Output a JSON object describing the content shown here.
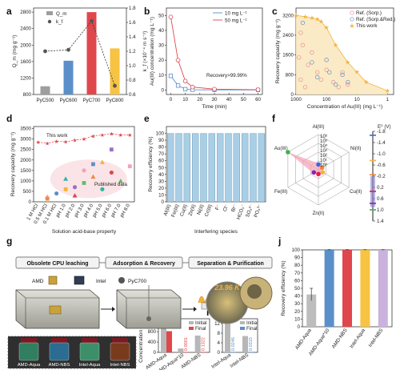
{
  "panels": {
    "a": "a",
    "b": "b",
    "c": "c",
    "d": "d",
    "e": "e",
    "f": "f",
    "g": "g",
    "h": "h",
    "i": "i",
    "j": "j"
  },
  "colors": {
    "grey": "#9e9e9e",
    "blue": "#5b8fc9",
    "red": "#e0474c",
    "yellow": "#f6c343",
    "pink": "#f3a3b4",
    "lightblue": "#a9cfe6",
    "orange": "#f08a3c",
    "gold": "#f2b33d"
  },
  "chart_data": [
    {
      "panel": "a",
      "type": "bar",
      "categories": [
        "PyC500",
        "PyC600",
        "PyC700",
        "PyC800"
      ],
      "series": [
        {
          "name": "Q_m",
          "values": [
            1000,
            1620,
            2800,
            1920
          ]
        },
        {
          "name": "k_f",
          "values": [
            1.2,
            1.22,
            1.62,
            0.72
          ]
        }
      ],
      "ylabel": "Q_m (mg g⁻¹)",
      "y2label": "k_f (×10⁻⁴ m s⁻¹)",
      "ylim": [
        800,
        2900
      ],
      "y2lim": [
        0.6,
        1.8
      ],
      "yticks": [
        "800",
        "1200",
        "1600",
        "2000",
        "2400",
        "2800"
      ],
      "y2ticks": [
        "0.6",
        "0.8",
        "1.0",
        "1.2",
        "1.4",
        "1.6",
        "1.8"
      ],
      "legend": [
        "Q_m",
        "k_f"
      ]
    },
    {
      "panel": "b",
      "type": "line",
      "x": [
        0,
        5,
        10,
        15,
        30,
        60
      ],
      "series": [
        {
          "name": "10 mg L⁻¹",
          "values": [
            9.5,
            3.0,
            0.6,
            0.2,
            0.1,
            0.05
          ]
        },
        {
          "name": "50 mg L⁻¹",
          "values": [
            49,
            20,
            6,
            2,
            0.6,
            0.2
          ]
        }
      ],
      "xlabel": "Time (min)",
      "ylabel": "Au(III) concentration (mg L⁻¹)",
      "xlim": [
        -3,
        63
      ],
      "ylim": [
        -3,
        55
      ],
      "xticks": [
        "0",
        "10",
        "20",
        "30",
        "40",
        "50",
        "60"
      ],
      "yticks": [
        "0",
        "10",
        "20",
        "30",
        "40",
        "50"
      ],
      "annotation": "Recovery>99.99%"
    },
    {
      "panel": "c",
      "type": "scatter",
      "xscale": "log-reversed",
      "xlabel": "Concentration of Au(III) (mg L⁻¹)",
      "ylabel": "Recovery capacity (mg g⁻¹)",
      "ylim": [
        0,
        3500
      ],
      "xticks": [
        "1000",
        "100",
        "10",
        "1"
      ],
      "yticks": [
        "0",
        "800",
        "1600",
        "2400",
        "3200"
      ],
      "legend": [
        "Ref. (Sorp.)",
        "Ref. (Sorp.&Red.)",
        "This work"
      ],
      "series": [
        {
          "name": "This work",
          "x": [
            1000,
            500,
            300,
            200,
            150,
            100,
            50,
            20,
            10,
            5,
            1
          ],
          "values": [
            3200,
            3150,
            3100,
            3050,
            2950,
            2700,
            2000,
            1300,
            900,
            500,
            150
          ]
        },
        {
          "name": "Ref. (Sorp.)",
          "x": [
            800,
            700,
            600,
            400,
            300,
            200,
            150,
            100,
            60,
            40,
            30,
            20,
            700,
            500
          ],
          "values": [
            1500,
            2500,
            2000,
            1200,
            1700,
            900,
            600,
            1000,
            500,
            300,
            900,
            400,
            600,
            300
          ]
        },
        {
          "name": "Ref. (Sorp.&Red.)",
          "x": [
            600,
            300,
            200,
            100,
            80,
            50,
            30,
            20
          ],
          "values": [
            2900,
            1300,
            700,
            1400,
            900,
            400,
            800,
            500
          ]
        }
      ]
    },
    {
      "panel": "d",
      "type": "scatter",
      "categories": [
        "1 M HCl",
        "0.5 M HCl",
        "0.1 M HCl",
        "pH 1.0",
        "pH 2.0",
        "pH 3.0",
        "pH 4.0",
        "pH 5.0",
        "pH 6.0",
        "pH 7.0",
        "pH 8.0"
      ],
      "xlabel": "Solution acid-base property",
      "ylabel": "Recovery capacity (mg g⁻¹)",
      "ylim": [
        0,
        3600
      ],
      "yticks": [
        "0",
        "500",
        "1000",
        "1500",
        "2000",
        "2500",
        "3000",
        "3500"
      ],
      "annotations": [
        "This work",
        "Published data"
      ],
      "series": [
        {
          "name": "This work",
          "values": [
            2850,
            2800,
            2900,
            2870,
            2950,
            3000,
            3150,
            3200,
            3250,
            3200,
            3200
          ]
        },
        {
          "name": "Published data",
          "x": [
            1,
            1,
            2,
            3,
            3,
            4,
            4,
            5,
            5,
            6,
            6,
            7,
            7,
            8,
            8,
            9,
            10
          ],
          "values": [
            250,
            150,
            400,
            1100,
            600,
            700,
            300,
            900,
            1500,
            1200,
            1800,
            600,
            1900,
            2500,
            1400,
            1000,
            1700
          ]
        }
      ]
    },
    {
      "panel": "e",
      "type": "bar",
      "categories": [
        "Al(III)",
        "Fe(III)",
        "Cu(II)",
        "Zn(II)",
        "Ni(II)",
        "Cr(III)",
        "F⁻",
        "Cl⁻",
        "Br⁻",
        "HCO₃⁻",
        "SO₄²⁻",
        "PO₄³⁻"
      ],
      "values": [
        99.9,
        99.9,
        99.9,
        99.9,
        99.9,
        99.9,
        99.9,
        99.9,
        99.9,
        99.9,
        99.9,
        99.9
      ],
      "xlabel": "Interfering species",
      "ylabel": "Recovery efficiency (%)",
      "ylim": [
        0,
        110
      ],
      "yticks": [
        "0",
        "10",
        "20",
        "30",
        "40",
        "50",
        "60",
        "70",
        "80",
        "90",
        "100"
      ]
    },
    {
      "panel": "h",
      "type": "bar",
      "categories": [
        "AMD-Aqua",
        "AMD-Aqua*10",
        "AMD-NBS"
      ],
      "series": [
        {
          "name": "Initial",
          "values": [
            1100,
            150,
            650
          ]
        },
        {
          "name": "Final",
          "values": [
            820,
            0.0001,
            0.1322
          ]
        }
      ],
      "data_labels": [
        "0.0001",
        "0.1322"
      ],
      "ylabel": "Concentration (mg L⁻¹)",
      "ylim": [
        0,
        1300
      ],
      "yticks": [
        "0",
        "400",
        "800",
        "1200"
      ],
      "legend": [
        "Initial",
        "Final"
      ]
    },
    {
      "panel": "i",
      "type": "bar",
      "categories": [
        "Intel-Aqua",
        "Intel-NBS"
      ],
      "series": [
        {
          "name": "Initial",
          "values": [
            12,
            6.8
          ]
        },
        {
          "name": "Final",
          "values": [
            0.0246,
            0.0315
          ]
        }
      ],
      "data_labels": [
        "0.0246",
        "0.0315"
      ],
      "ylim": [
        0,
        14
      ],
      "yticks": [
        "0",
        "4",
        "8",
        "12"
      ],
      "legend": [
        "Initial",
        "Final"
      ]
    },
    {
      "panel": "j",
      "type": "bar",
      "categories": [
        "AMD-Aqua",
        "AMD-Aqua*10",
        "AMD-NBS",
        "Intel-Aqua",
        "Intel-NBS"
      ],
      "values": [
        42,
        99.9,
        99.9,
        99.9,
        99.9
      ],
      "errors": [
        8,
        0.5,
        0.5,
        0.5,
        0.5
      ],
      "ylabel": "Recovery efficiency (%)",
      "ylim": [
        0,
        100
      ],
      "yticks": [
        "0",
        "10",
        "20",
        "30",
        "40",
        "50",
        "60",
        "70",
        "80",
        "90",
        "100"
      ]
    }
  ],
  "radar": {
    "axes": [
      "Au(III)",
      "Al(III)",
      "Ni(II)",
      "Cu(II)",
      "Zn(II)",
      "Fe(III)"
    ],
    "ring_labels": [
      "10⁶",
      "10⁵",
      "10⁴",
      "10³",
      "10²",
      "10¹",
      "10⁰"
    ],
    "eo_label": "E⁰ (V)",
    "eo_ticks": [
      "-1.8",
      "-1.4",
      "-1.0",
      "-0.6",
      "-0.2",
      "0.2",
      "0.6",
      "1.0",
      "1.4"
    ]
  },
  "process": {
    "step1": "Obsolete CPU leaching",
    "step2": "Adsorption & Recovery",
    "step3": "Separation & Purification",
    "amd": "AMD",
    "intel": "Intel",
    "pyc": "PyC700",
    "gold_text": "23.96 K",
    "vials": [
      "AMD-Aqua",
      "AMD-NBS",
      "Intel-Aqua",
      "Intel-NBS"
    ]
  }
}
